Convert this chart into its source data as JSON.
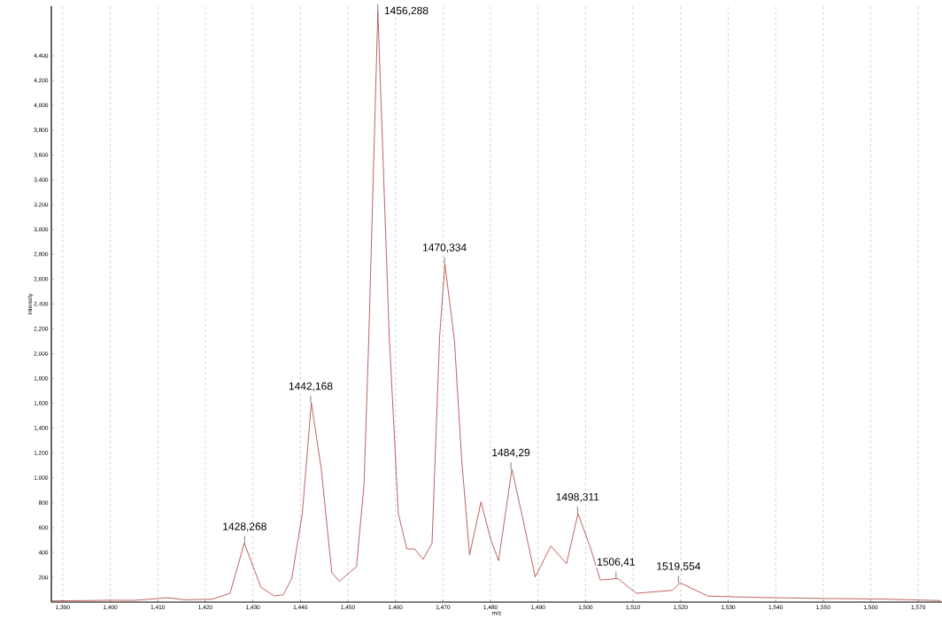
{
  "chart_data": {
    "type": "line",
    "xlabel": "m/z",
    "ylabel": "Intensity",
    "grid": "x",
    "marker": "none",
    "line_style": "solid",
    "xlim": [
      1387.6,
      1575
    ],
    "ylim": [
      0,
      4800
    ],
    "xticks": [
      {
        "value": 1390,
        "label": "1,390"
      },
      {
        "value": 1400,
        "label": "1,400"
      },
      {
        "value": 1410,
        "label": "1,410"
      },
      {
        "value": 1420,
        "label": "1,420"
      },
      {
        "value": 1430,
        "label": "1,430"
      },
      {
        "value": 1440,
        "label": "1,440"
      },
      {
        "value": 1450,
        "label": "1,450"
      },
      {
        "value": 1460,
        "label": "1,460"
      },
      {
        "value": 1470,
        "label": "1,470"
      },
      {
        "value": 1480,
        "label": "1,480"
      },
      {
        "value": 1490,
        "label": "1,490"
      },
      {
        "value": 1500,
        "label": "1,500"
      },
      {
        "value": 1510,
        "label": "1,510"
      },
      {
        "value": 1520,
        "label": "1,520"
      },
      {
        "value": 1530,
        "label": "1,530"
      },
      {
        "value": 1540,
        "label": "1,540"
      },
      {
        "value": 1550,
        "label": "1,550"
      },
      {
        "value": 1560,
        "label": "1,560"
      },
      {
        "value": 1570,
        "label": "1,570"
      }
    ],
    "yticks": [
      200,
      400,
      600,
      800,
      {
        "value": 1000,
        "label": "1,000"
      },
      {
        "value": 1200,
        "label": "1,200"
      },
      {
        "value": 1400,
        "label": "1,400"
      },
      {
        "value": 1600,
        "label": "1,600"
      },
      {
        "value": 1800,
        "label": "1,800"
      },
      {
        "value": 2000,
        "label": "2,000"
      },
      {
        "value": 2200,
        "label": "2,200"
      },
      {
        "value": 2400,
        "label": "2,400"
      },
      {
        "value": 2600,
        "label": "2,600"
      },
      {
        "value": 2800,
        "label": "2,800"
      },
      {
        "value": 3000,
        "label": "3,000"
      },
      {
        "value": 3200,
        "label": "3,200"
      },
      {
        "value": 3400,
        "label": "3,400"
      },
      {
        "value": 3600,
        "label": "3,600"
      },
      {
        "value": 3800,
        "label": "3,800"
      },
      {
        "value": 4000,
        "label": "4,000"
      },
      {
        "value": 4200,
        "label": "4,200"
      },
      {
        "value": 4400,
        "label": "4,400"
      }
    ],
    "series": [
      {
        "color": "#b03a3a",
        "x": [
          1387.6,
          1395,
          1400,
          1405,
          1412,
          1416,
          1421.5,
          1425.2,
          1428.2,
          1431.7,
          1434.5,
          1436.4,
          1438.2,
          1440.4,
          1442.3,
          1444.4,
          1446.6,
          1448.2,
          1450.3,
          1451.8,
          1453.4,
          1454.4,
          1456.3,
          1458.7,
          1460.6,
          1462.4,
          1464,
          1465.8,
          1467.7,
          1469.3,
          1470.4,
          1472.4,
          1473.9,
          1475.6,
          1478,
          1480.1,
          1481.7,
          1484.5,
          1486.7,
          1489.4,
          1492.7,
          1496,
          1498.4,
          1500.9,
          1503.1,
          1506.8,
          1510.7,
          1518.3,
          1519.9,
          1525.8,
          1538.2,
          1550.6,
          1563,
          1574.7
        ],
        "values": [
          10,
          12,
          15,
          14,
          35,
          18,
          24,
          71,
          475,
          119,
          50,
          59,
          192,
          713,
          1605,
          1070,
          238,
          166,
          238,
          285,
          951,
          2140,
          4760,
          2140,
          713,
          428,
          428,
          345,
          475,
          2140,
          2722,
          2116,
          1165,
          380,
          808,
          499,
          333,
          1070,
          690,
          202,
          452,
          309,
          713,
          452,
          178,
          190,
          71,
          95,
          155,
          48,
          36,
          29,
          24,
          12
        ]
      }
    ],
    "annotations": [
      {
        "text": "1428,268",
        "x": 1428.268,
        "y": 475
      },
      {
        "text": "1442,168",
        "x": 1442.168,
        "y": 1605
      },
      {
        "text": "1456,288",
        "x": 1456.288,
        "y": 4760
      },
      {
        "text": "1470,334",
        "x": 1470.334,
        "y": 2722
      },
      {
        "text": "1484,29",
        "x": 1484.29,
        "y": 1070
      },
      {
        "text": "1498,311",
        "x": 1498.311,
        "y": 713
      },
      {
        "text": "1506,41",
        "x": 1506.41,
        "y": 190
      },
      {
        "text": "1519,554",
        "x": 1519.554,
        "y": 155
      }
    ]
  }
}
